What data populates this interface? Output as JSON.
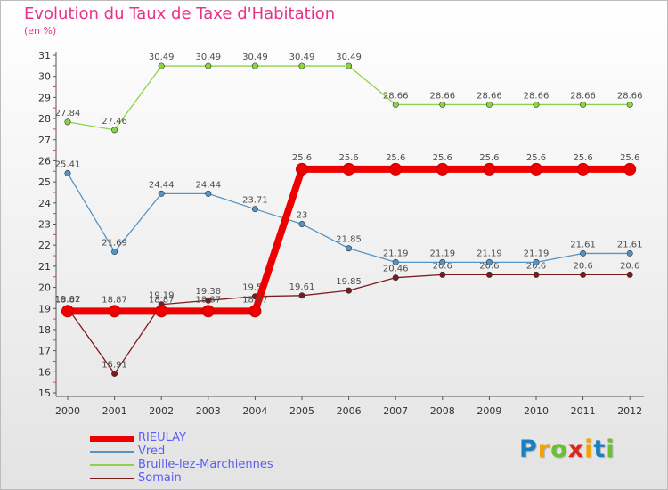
{
  "header": {
    "title": "Evolution du Taux de Taxe d'Habitation",
    "subtitle": "(en %)"
  },
  "logo": {
    "letters": [
      "P",
      "r",
      "o",
      "x",
      "i",
      "t",
      "i"
    ],
    "colors": [
      "#1a7fc1",
      "#f0a30a",
      "#6cbf2f",
      "#e2231a",
      "#f0a30a",
      "#1a7fc1",
      "#6cbf2f"
    ]
  },
  "chart_data": {
    "type": "line",
    "title": "Evolution du Taux de Taxe d'Habitation",
    "ylabel": "(en %)",
    "xlabel": "",
    "x": [
      2000,
      2001,
      2002,
      2003,
      2004,
      2005,
      2006,
      2007,
      2008,
      2009,
      2010,
      2011,
      2012
    ],
    "ylim": [
      15,
      31
    ],
    "yticks": [
      15,
      16,
      17,
      18,
      19,
      20,
      21,
      22,
      23,
      24,
      25,
      26,
      27,
      28,
      29,
      30,
      31
    ],
    "grid": false,
    "legend_position": "bottom-left",
    "series": [
      {
        "name": "Somain",
        "color": "#7a1c1c",
        "values": [
          19.02,
          15.91,
          19.19,
          19.38,
          19.57,
          19.61,
          19.85,
          20.46,
          20.6,
          20.6,
          20.6,
          20.6,
          20.6
        ],
        "labels": [
          "19.02",
          "15.91",
          "19.19",
          "19.38",
          "19.57",
          "19.61",
          "19.85",
          "20.46",
          "20.6",
          "20.6",
          "20.6",
          "20.6",
          "20.6"
        ]
      },
      {
        "name": "Vred",
        "color": "#5594c4",
        "values": [
          25.41,
          21.69,
          24.44,
          24.44,
          23.71,
          23,
          21.85,
          21.19,
          21.19,
          21.19,
          21.19,
          21.61,
          21.61
        ],
        "labels": [
          "25.41",
          "21.69",
          "24.44",
          "24.44",
          "23.71",
          "23",
          "21.85",
          "21.19",
          "21.19",
          "21.19",
          "21.19",
          "21.61",
          "21.61"
        ]
      },
      {
        "name": "Bruille-lez-Marchiennes",
        "color": "#8fd24a",
        "values": [
          27.84,
          27.46,
          30.49,
          30.49,
          30.49,
          30.49,
          30.49,
          28.66,
          28.66,
          28.66,
          28.66,
          28.66,
          28.66
        ],
        "labels": [
          "27.84",
          "27.46",
          "30.49",
          "30.49",
          "30.49",
          "30.49",
          "30.49",
          "28.66",
          "28.66",
          "28.66",
          "28.66",
          "28.66",
          "28.66"
        ]
      },
      {
        "name": "RIEULAY",
        "color": "#ee0000",
        "values": [
          18.87,
          18.87,
          18.87,
          18.87,
          18.87,
          25.6,
          25.6,
          25.6,
          25.6,
          25.6,
          25.6,
          25.6,
          25.6
        ],
        "labels": [
          "18.87",
          "18.87",
          "18.87",
          "18.87",
          "18.87",
          "25.6",
          "25.6",
          "25.6",
          "25.6",
          "25.6",
          "25.6",
          "25.6",
          "25.6"
        ]
      }
    ],
    "legend": [
      "RIEULAY",
      "Vred",
      "Bruille-lez-Marchiennes",
      "Somain"
    ]
  }
}
